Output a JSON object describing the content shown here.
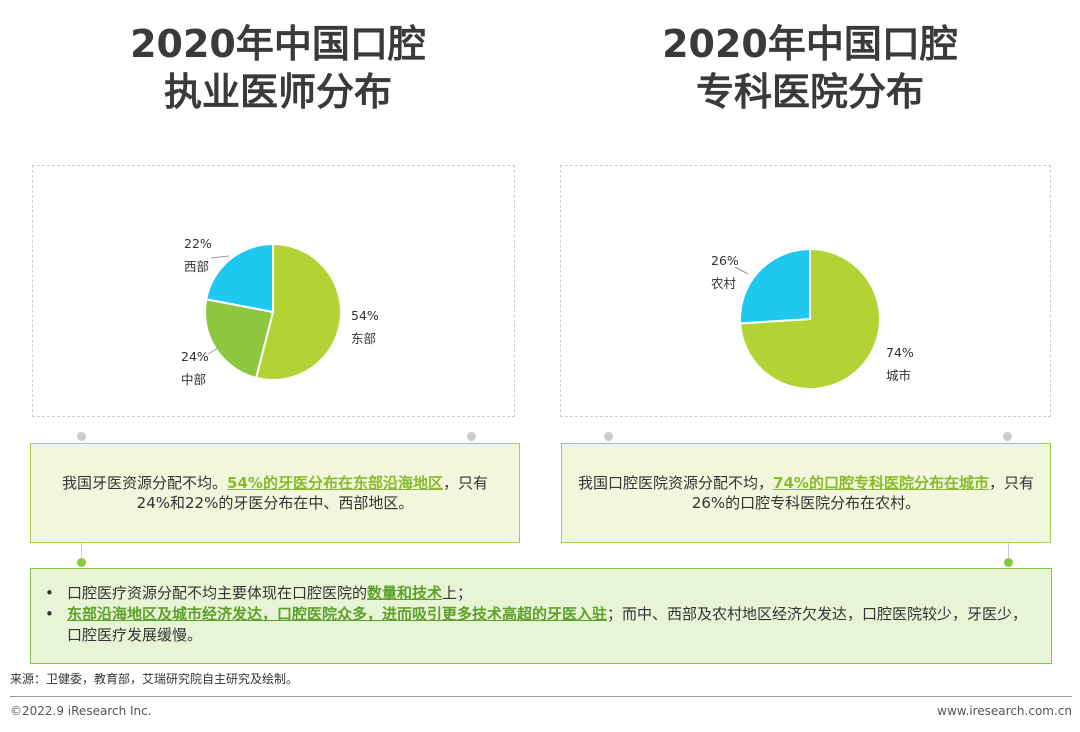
{
  "left": {
    "title_line1": "2020年中国口腔",
    "title_line2": "执业医师分布",
    "summary_pre": "我国牙医资源分配不均。",
    "summary_hl": "54%的牙医分布在东部沿海地区",
    "summary_post": "，只有24%和22%的牙医分布在中、西部地区。"
  },
  "right": {
    "title_line1": "2020年中国口腔",
    "title_line2": "专科医院分布",
    "summary_pre": "我国口腔医院资源分配不均，",
    "summary_hl": "74%的口腔专科医院分布在城市",
    "summary_post": "，只有26%的口腔专科医院分布在农村。"
  },
  "bottom": {
    "bullet_mark": "•",
    "b1_pre": "口腔医疗资源分配不均主要体现在口腔医院的",
    "b1_hl": "数量和技术",
    "b1_post": "上；",
    "b2_hl": "东部沿海地区及城市经济发达，口腔医院众多，进而吸引更多技术高超的牙医入驻",
    "b2_post": "；而中、西部及农村地区经济欠发达，口腔医院较少，牙医少，口腔医疗发展缓慢。"
  },
  "footer": {
    "source": "来源：卫健委，教育部，艾瑞研究院自主研究及绘制。",
    "copyright": "©2022.9 iResearch Inc.",
    "website": "www.iresearch.com.cn"
  },
  "colors": {
    "light_green": "#b3d335",
    "mid_green": "#8dc63f",
    "cyan": "#1fc8ef",
    "highlight": "#8ab92d"
  },
  "chart_data": [
    {
      "type": "pie",
      "title": "2020年中国口腔执业医师分布",
      "slices": [
        {
          "label": "东部",
          "value": 54,
          "display": "54%",
          "color": "#b3d335"
        },
        {
          "label": "中部",
          "value": 24,
          "display": "24%",
          "color": "#8dc63f"
        },
        {
          "label": "西部",
          "value": 22,
          "display": "22%",
          "color": "#1fc8ef"
        }
      ]
    },
    {
      "type": "pie",
      "title": "2020年中国口腔专科医院分布",
      "slices": [
        {
          "label": "城市",
          "value": 74,
          "display": "74%",
          "color": "#b3d335"
        },
        {
          "label": "农村",
          "value": 26,
          "display": "26%",
          "color": "#1fc8ef"
        }
      ]
    }
  ]
}
